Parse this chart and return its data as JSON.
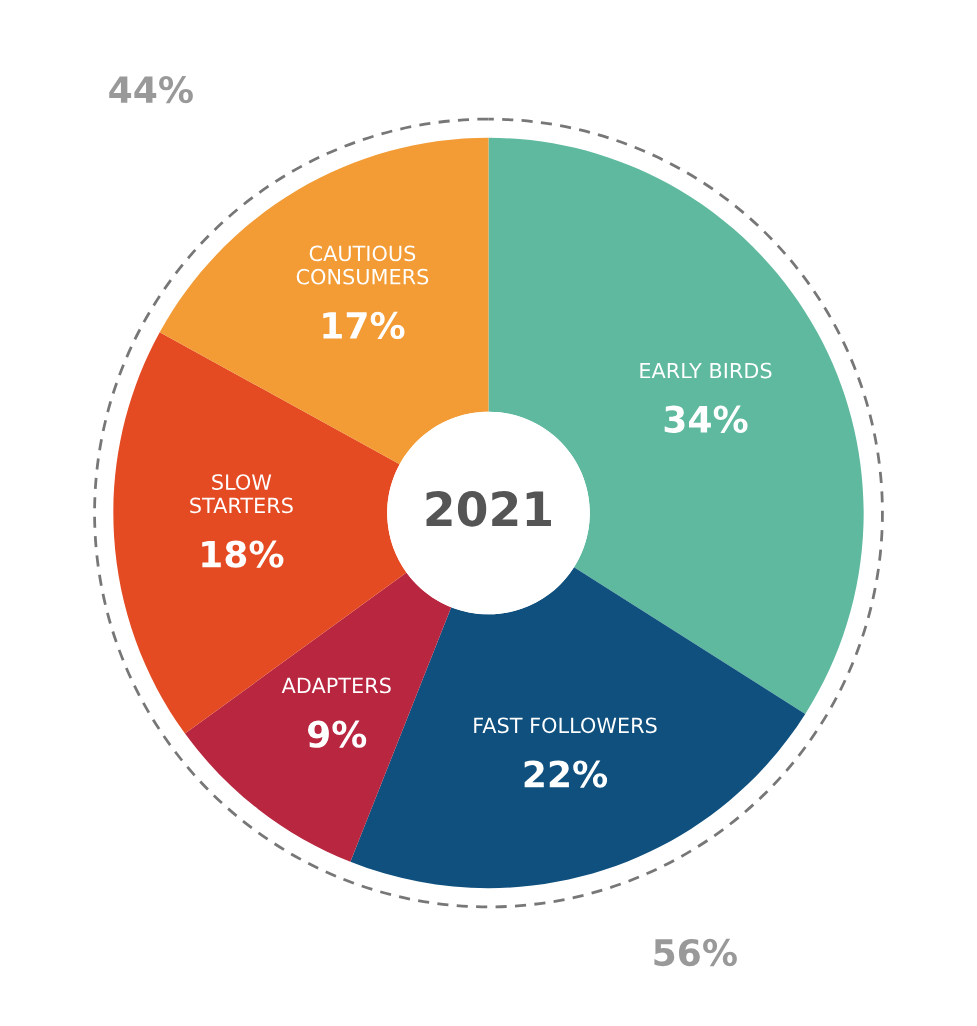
{
  "chart_data": {
    "type": "donut",
    "title": "2021",
    "categories": [
      "EARLY BIRDS",
      "FAST FOLLOWERS",
      "ADAPTERS",
      "SLOW STARTERS",
      "CAUTIOUS CONSUMERS"
    ],
    "values": [
      34,
      22,
      9,
      18,
      17
    ],
    "colors": [
      "#5fb99e",
      "#0f507e",
      "#b8263f",
      "#e54b23",
      "#f39b34"
    ],
    "value_labels": [
      "34%",
      "22%",
      "9%",
      "18%",
      "17%"
    ],
    "annotations": [
      "44%",
      "56%"
    ]
  }
}
